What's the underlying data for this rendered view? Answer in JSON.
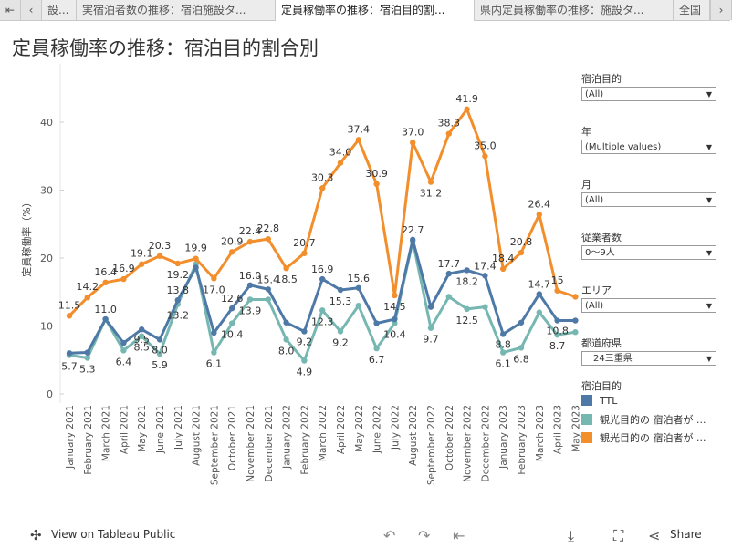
{
  "tabs": [
    {
      "label": "設..."
    },
    {
      "label": "実宿泊者数の推移：宿泊施設タ..."
    },
    {
      "label": "定員稼働率の推移：宿泊目的割..."
    },
    {
      "label": "県内定員稼働率の推移：施設タ..."
    },
    {
      "label": "全国"
    }
  ],
  "page_title": "定員稼働率の推移：宿泊目的割合別",
  "filters": [
    {
      "label": "宿泊目的",
      "value": "(All)"
    },
    {
      "label": "年",
      "value": "(Multiple values)"
    },
    {
      "label": "月",
      "value": "(All)"
    },
    {
      "label": "従業者数",
      "value": "0〜9人"
    },
    {
      "label": "エリア",
      "value": "(All)"
    },
    {
      "label": "都道府県",
      "value": "24三重県"
    }
  ],
  "legend": {
    "title": "宿泊目的",
    "items": [
      {
        "label": "TTL",
        "color": "#4e79a7"
      },
      {
        "label": "観光目的の 宿泊者が ...",
        "color": "#76b7b2"
      },
      {
        "label": "観光目的の 宿泊者が ...",
        "color": "#f28e2b"
      }
    ]
  },
  "footer": {
    "view_label": "View on Tableau Public",
    "share_label": "Share"
  },
  "icons": {
    "undo": "undo-icon",
    "redo": "redo-icon",
    "revert": "revert-icon",
    "download": "download-icon",
    "fullscreen": "fullscreen-icon",
    "share": "share-icon",
    "tableau": "tableau-logo-icon"
  },
  "chart_data": {
    "type": "line",
    "title": "定員稼働率の推移：宿泊目的割合別",
    "xlabel": "",
    "ylabel": "定員稼働率（%）",
    "ylim": [
      0,
      46
    ],
    "yticks": [
      0,
      10,
      20,
      30,
      40
    ],
    "categories": [
      "January 2021",
      "February 2021",
      "March 2021",
      "April 2021",
      "May 2021",
      "June 2021",
      "July 2021",
      "August 2021",
      "September 2021",
      "October 2021",
      "November 2021",
      "December 2021",
      "January 2022",
      "February 2022",
      "March 2022",
      "April 2022",
      "May 2022",
      "June 2022",
      "July 2022",
      "August 2022",
      "September 2022",
      "October 2022",
      "November 2022",
      "December 2022",
      "January 2023",
      "February 2023",
      "March 2023",
      "April 2023",
      "May 2023"
    ],
    "series": [
      {
        "name": "TTL",
        "color": "#4e79a7",
        "values": [
          6.0,
          6.1,
          11.0,
          7.5,
          9.5,
          8.0,
          13.8,
          18.6,
          9.0,
          12.6,
          16.0,
          15.4,
          10.5,
          9.2,
          16.9,
          15.3,
          15.6,
          10.4,
          11.0,
          22.7,
          12.8,
          17.7,
          18.2,
          17.4,
          8.8,
          10.5,
          14.7,
          10.8,
          10.8
        ],
        "labels": [
          "",
          "",
          "11.0",
          "",
          "9.5",
          "8.0",
          "13.8",
          "",
          "",
          "12.6",
          "16.0",
          "15.4",
          "",
          "9.2",
          "16.9",
          "15.3",
          "15.6",
          "",
          "",
          "22.7",
          "",
          "17.7",
          "18.2",
          "17.4",
          "8.8",
          "",
          "14.7",
          "10.8",
          ""
        ]
      },
      {
        "name": "観光目的の 宿泊者が ...",
        "color": "#76b7b2",
        "values": [
          5.7,
          5.3,
          11.0,
          6.4,
          8.5,
          5.9,
          13.2,
          19.1,
          6.1,
          10.4,
          13.9,
          13.9,
          8.0,
          4.9,
          12.3,
          9.2,
          13.0,
          6.7,
          10.4,
          22.5,
          9.7,
          14.3,
          12.5,
          12.8,
          6.1,
          6.8,
          12.0,
          8.7,
          9.1
        ],
        "labels": [
          "5.7",
          "5.3",
          "",
          "6.4",
          "8.5",
          "5.9",
          "13.2",
          "",
          "6.1",
          "10.4",
          "13.9",
          "",
          "8.0",
          "4.9",
          "12.3",
          "9.2",
          "",
          "6.7",
          "10.4",
          "",
          "9.7",
          "",
          "12.5",
          "",
          "6.1",
          "6.8",
          "",
          "8.7",
          ""
        ]
      },
      {
        "name": "観光目的の 宿泊者が ...",
        "color": "#f28e2b",
        "values": [
          11.5,
          14.2,
          16.4,
          16.9,
          19.1,
          20.3,
          19.2,
          19.9,
          17.0,
          20.9,
          22.4,
          22.8,
          18.5,
          20.7,
          30.3,
          34.0,
          37.4,
          30.9,
          14.5,
          37.0,
          31.2,
          38.3,
          41.9,
          35.0,
          18.4,
          20.8,
          26.4,
          15.2,
          14.3
        ],
        "labels": [
          "11.5",
          "14.2",
          "16.4",
          "16.9",
          "19.1",
          "20.3",
          "19.2",
          "19.9",
          "17.0",
          "20.9",
          "22.4",
          "22.8",
          "18.5",
          "20.7",
          "30.3",
          "34.0",
          "37.4",
          "30.9",
          "14.5",
          "37.0",
          "31.2",
          "38.3",
          "41.9",
          "35.0",
          "18.4",
          "20.8",
          "26.4",
          "15",
          ""
        ]
      }
    ]
  }
}
